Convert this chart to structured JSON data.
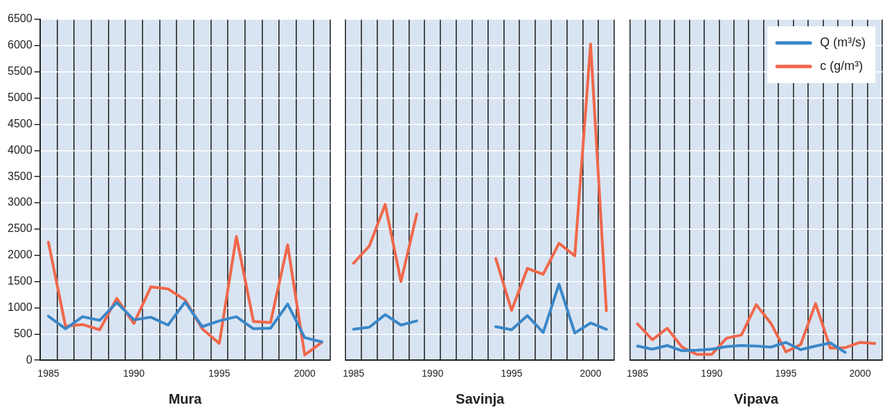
{
  "chart_data": [
    {
      "type": "line",
      "xlabel": "Mura",
      "categories": [
        "1985",
        null,
        null,
        null,
        null,
        "1990",
        null,
        null,
        null,
        null,
        "1995",
        null,
        null,
        null,
        null,
        "2000",
        null
      ],
      "ylim": [
        0,
        6500
      ],
      "yticks": [
        0,
        500,
        1000,
        1500,
        2000,
        2500,
        3000,
        3500,
        4000,
        4500,
        5000,
        5500,
        6000,
        6500
      ],
      "grid": true,
      "legend": false,
      "marker": "none",
      "line_style": "solid",
      "series": [
        {
          "color": "#3a87c8",
          "values": [
            840,
            600,
            830,
            760,
            1100,
            770,
            820,
            670,
            1110,
            640,
            750,
            830,
            600,
            610,
            1070,
            430,
            350
          ]
        },
        {
          "color": "#f0674a",
          "values": [
            2250,
            650,
            680,
            580,
            1180,
            700,
            1400,
            1360,
            1150,
            600,
            320,
            2360,
            740,
            720,
            2200,
            100,
            340
          ]
        }
      ]
    },
    {
      "type": "line",
      "xlabel": "Savinja",
      "categories": [
        "1985",
        null,
        null,
        null,
        null,
        "1990",
        null,
        null,
        null,
        null,
        "1995",
        null,
        null,
        null,
        null,
        "2000",
        null
      ],
      "ylim": [
        0,
        6500
      ],
      "yticks": [
        0,
        500,
        1000,
        1500,
        2000,
        2500,
        3000,
        3500,
        4000,
        4500,
        5000,
        5500,
        6000,
        6500
      ],
      "grid": true,
      "legend": false,
      "tick_labels": "x",
      "marker": "none",
      "line_style": "solid",
      "series": [
        {
          "color": "#3a87c8",
          "values": [
            590,
            630,
            870,
            670,
            750,
            null,
            null,
            null,
            null,
            640,
            580,
            850,
            530,
            1450,
            520,
            710,
            590
          ]
        },
        {
          "color": "#f0674a",
          "values": [
            1850,
            2180,
            2970,
            1500,
            2790,
            null,
            null,
            null,
            null,
            1940,
            950,
            1750,
            1640,
            2230,
            1990,
            6030,
            940
          ]
        }
      ]
    },
    {
      "type": "line",
      "xlabel": "Vipava",
      "categories": [
        "1985",
        null,
        null,
        null,
        null,
        "1990",
        null,
        null,
        null,
        null,
        "1995",
        null,
        null,
        null,
        null,
        "2000",
        null
      ],
      "ylim": [
        0,
        6500
      ],
      "yticks": [
        0,
        500,
        1000,
        1500,
        2000,
        2500,
        3000,
        3500,
        4000,
        4500,
        5000,
        5500,
        6000,
        6500
      ],
      "grid": true,
      "legend": "top right",
      "tick_labels": "x",
      "marker": "none",
      "line_style": "solid",
      "series": [
        {
          "name": "Q (m³/s)",
          "color": "#3a87c8",
          "values": [
            270,
            210,
            280,
            180,
            190,
            210,
            260,
            280,
            270,
            250,
            340,
            200,
            270,
            330,
            150,
            null,
            null
          ]
        },
        {
          "name": "c (g/m³)",
          "color": "#f0674a",
          "values": [
            690,
            390,
            610,
            250,
            110,
            110,
            420,
            480,
            1060,
            700,
            160,
            300,
            1080,
            230,
            240,
            340,
            320
          ]
        }
      ]
    }
  ]
}
